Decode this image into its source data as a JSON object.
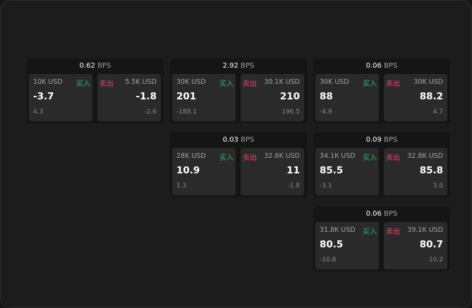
{
  "labels": {
    "buy": "买入",
    "sell": "卖出",
    "unit": "BPS"
  },
  "colors": {
    "buy": "#2fb36a",
    "sell": "#e0466e"
  },
  "cards": [
    {
      "spread": "0.62",
      "bid": {
        "size": "10K USD",
        "price": "-3.7",
        "change": "4.3"
      },
      "ask": {
        "size": "5.5K USD",
        "price": "-1.8",
        "change": "-2.6"
      }
    },
    {
      "spread": "2.92",
      "bid": {
        "size": "30K USD",
        "price": "201",
        "change": "-188.1"
      },
      "ask": {
        "size": "30.1K USD",
        "price": "210",
        "change": "196.5"
      }
    },
    {
      "spread": "0.06",
      "bid": {
        "size": "30K USD",
        "price": "88",
        "change": "-4.9"
      },
      "ask": {
        "size": "30K USD",
        "price": "88.2",
        "change": "4.7"
      }
    },
    {
      "spread": "0.03",
      "bid": {
        "size": "28K USD",
        "price": "10.9",
        "change": "1.3"
      },
      "ask": {
        "size": "32.6K USD",
        "price": "11",
        "change": "-1.8"
      }
    },
    {
      "spread": "0.09",
      "bid": {
        "size": "34.1K USD",
        "price": "85.5",
        "change": "-3.1"
      },
      "ask": {
        "size": "32.8K USD",
        "price": "85.8",
        "change": "3.0"
      }
    },
    {
      "spread": "0.06",
      "bid": {
        "size": "31.8K USD",
        "price": "80.5",
        "change": "-10.8"
      },
      "ask": {
        "size": "39.1K USD",
        "price": "80.7",
        "change": "10.2"
      }
    }
  ]
}
